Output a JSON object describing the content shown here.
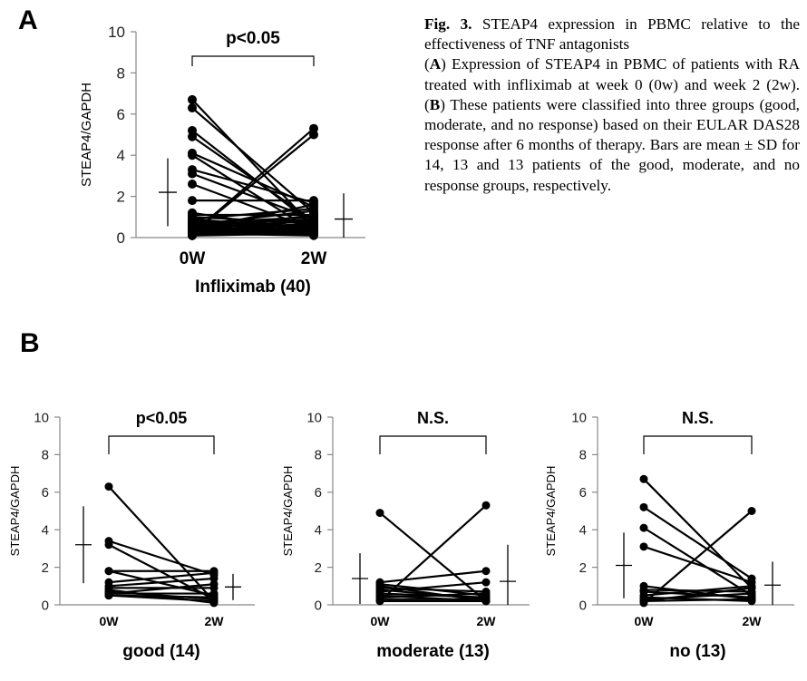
{
  "caption": {
    "fig_label": "Fig. 3.",
    "title": "STEAP4 expression in PBMC relative to the effectiveness of TNF antagonists",
    "part_a_label": "A",
    "part_a_text": "Expression of STEAP4 in PBMC of patients with RA treated with infliximab at week 0 (0w) and week 2 (2w).",
    "part_b_label": "B",
    "part_b_text": "These patients were classified into three groups (good, moderate, and no response) based on their EULAR DAS28 response after 6 months of therapy. Bars are mean ± SD for 14, 13 and 13 patients of the good, moderate, and no response groups, respectively."
  },
  "panels": {
    "a_label": "A",
    "b_label": "B"
  },
  "chart_data": [
    {
      "id": "A",
      "type": "scatter",
      "title": "",
      "xlabel": "Infliximab (40)",
      "ylabel": "STEAP4/GAPDH",
      "categories": [
        "0W",
        "2W"
      ],
      "ylim": [
        0,
        10
      ],
      "yticks": [
        0,
        2,
        4,
        6,
        8,
        10
      ],
      "significance": "p<0.05",
      "pairs": [
        [
          6.7,
          0.5
        ],
        [
          6.3,
          1.2
        ],
        [
          5.2,
          0.6
        ],
        [
          4.9,
          0.8
        ],
        [
          4.1,
          1.5
        ],
        [
          4.0,
          0.3
        ],
        [
          3.3,
          1.7
        ],
        [
          3.1,
          0.9
        ],
        [
          2.6,
          0.4
        ],
        [
          1.8,
          1.8
        ],
        [
          1.1,
          1.1
        ],
        [
          1.0,
          0.7
        ],
        [
          0.9,
          1.4
        ],
        [
          0.8,
          0.2
        ],
        [
          0.8,
          0.5
        ],
        [
          0.7,
          1.0
        ],
        [
          0.7,
          0.3
        ],
        [
          0.6,
          0.9
        ],
        [
          0.6,
          0.6
        ],
        [
          0.5,
          0.8
        ],
        [
          0.5,
          0.4
        ],
        [
          0.5,
          0.2
        ],
        [
          0.4,
          0.6
        ],
        [
          0.4,
          1.6
        ],
        [
          0.4,
          0.3
        ],
        [
          0.3,
          0.5
        ],
        [
          0.3,
          0.2
        ],
        [
          0.3,
          0.7
        ],
        [
          0.2,
          5.0
        ],
        [
          0.2,
          0.4
        ],
        [
          0.2,
          0.1
        ],
        [
          0.2,
          5.3
        ],
        [
          0.15,
          0.3
        ],
        [
          0.1,
          0.6
        ],
        [
          0.1,
          0.2
        ],
        [
          0.1,
          0.9
        ],
        [
          0.6,
          1.3
        ],
        [
          0.9,
          0.4
        ],
        [
          1.2,
          0.3
        ],
        [
          0.3,
          1.1
        ]
      ],
      "mean_sd": [
        {
          "mean": 2.2,
          "sd": 1.65
        },
        {
          "mean": 0.9,
          "sd": 1.25
        }
      ]
    },
    {
      "id": "B-good",
      "type": "scatter",
      "title": "",
      "xlabel": "good (14)",
      "ylabel": "STEAP4/GAPDH",
      "categories": [
        "0W",
        "2W"
      ],
      "ylim": [
        0,
        10
      ],
      "yticks": [
        0,
        2,
        4,
        6,
        8,
        10
      ],
      "significance": "p<0.05",
      "pairs": [
        [
          6.3,
          0.2
        ],
        [
          3.4,
          1.6
        ],
        [
          3.2,
          0.3
        ],
        [
          1.8,
          1.8
        ],
        [
          1.8,
          0.5
        ],
        [
          1.2,
          1.7
        ],
        [
          1.0,
          1.4
        ],
        [
          0.9,
          0.9
        ],
        [
          0.8,
          0.1
        ],
        [
          0.7,
          0.3
        ],
        [
          0.6,
          1.1
        ],
        [
          0.6,
          0.6
        ],
        [
          0.5,
          0.2
        ],
        [
          0.5,
          0.4
        ]
      ],
      "mean_sd": [
        {
          "mean": 3.2,
          "sd": 2.05
        },
        {
          "mean": 0.95,
          "sd": 0.7
        }
      ]
    },
    {
      "id": "B-moderate",
      "type": "scatter",
      "title": "",
      "xlabel": "moderate (13)",
      "ylabel": "STEAP4/GAPDH",
      "categories": [
        "0W",
        "2W"
      ],
      "ylim": [
        0,
        10
      ],
      "yticks": [
        0,
        2,
        4,
        6,
        8,
        10
      ],
      "significance": "N.S.",
      "pairs": [
        [
          4.9,
          0.2
        ],
        [
          1.2,
          1.8
        ],
        [
          1.1,
          0.5
        ],
        [
          1.0,
          0.2
        ],
        [
          0.9,
          0.7
        ],
        [
          0.8,
          0.3
        ],
        [
          0.7,
          1.2
        ],
        [
          0.6,
          0.4
        ],
        [
          0.5,
          0.2
        ],
        [
          0.4,
          0.6
        ],
        [
          0.3,
          0.3
        ],
        [
          0.2,
          0.2
        ],
        [
          0.2,
          5.3
        ]
      ],
      "mean_sd": [
        {
          "mean": 1.4,
          "sd": 1.35
        },
        {
          "mean": 1.25,
          "sd": 1.95
        }
      ]
    },
    {
      "id": "B-no",
      "type": "scatter",
      "title": "",
      "xlabel": "no (13)",
      "ylabel": "STEAP4/GAPDH",
      "categories": [
        "0W",
        "2W"
      ],
      "ylim": [
        0,
        10
      ],
      "yticks": [
        0,
        2,
        4,
        6,
        8,
        10
      ],
      "significance": "N.S.",
      "pairs": [
        [
          6.7,
          0.9
        ],
        [
          5.2,
          1.4
        ],
        [
          4.1,
          0.5
        ],
        [
          3.1,
          1.2
        ],
        [
          1.0,
          0.3
        ],
        [
          0.8,
          0.7
        ],
        [
          0.7,
          0.4
        ],
        [
          0.5,
          1.0
        ],
        [
          0.4,
          0.2
        ],
        [
          0.3,
          0.6
        ],
        [
          0.2,
          0.3
        ],
        [
          0.2,
          0.9
        ],
        [
          0.1,
          5.0
        ]
      ],
      "mean_sd": [
        {
          "mean": 2.1,
          "sd": 1.75
        },
        {
          "mean": 1.05,
          "sd": 1.25
        }
      ]
    }
  ]
}
